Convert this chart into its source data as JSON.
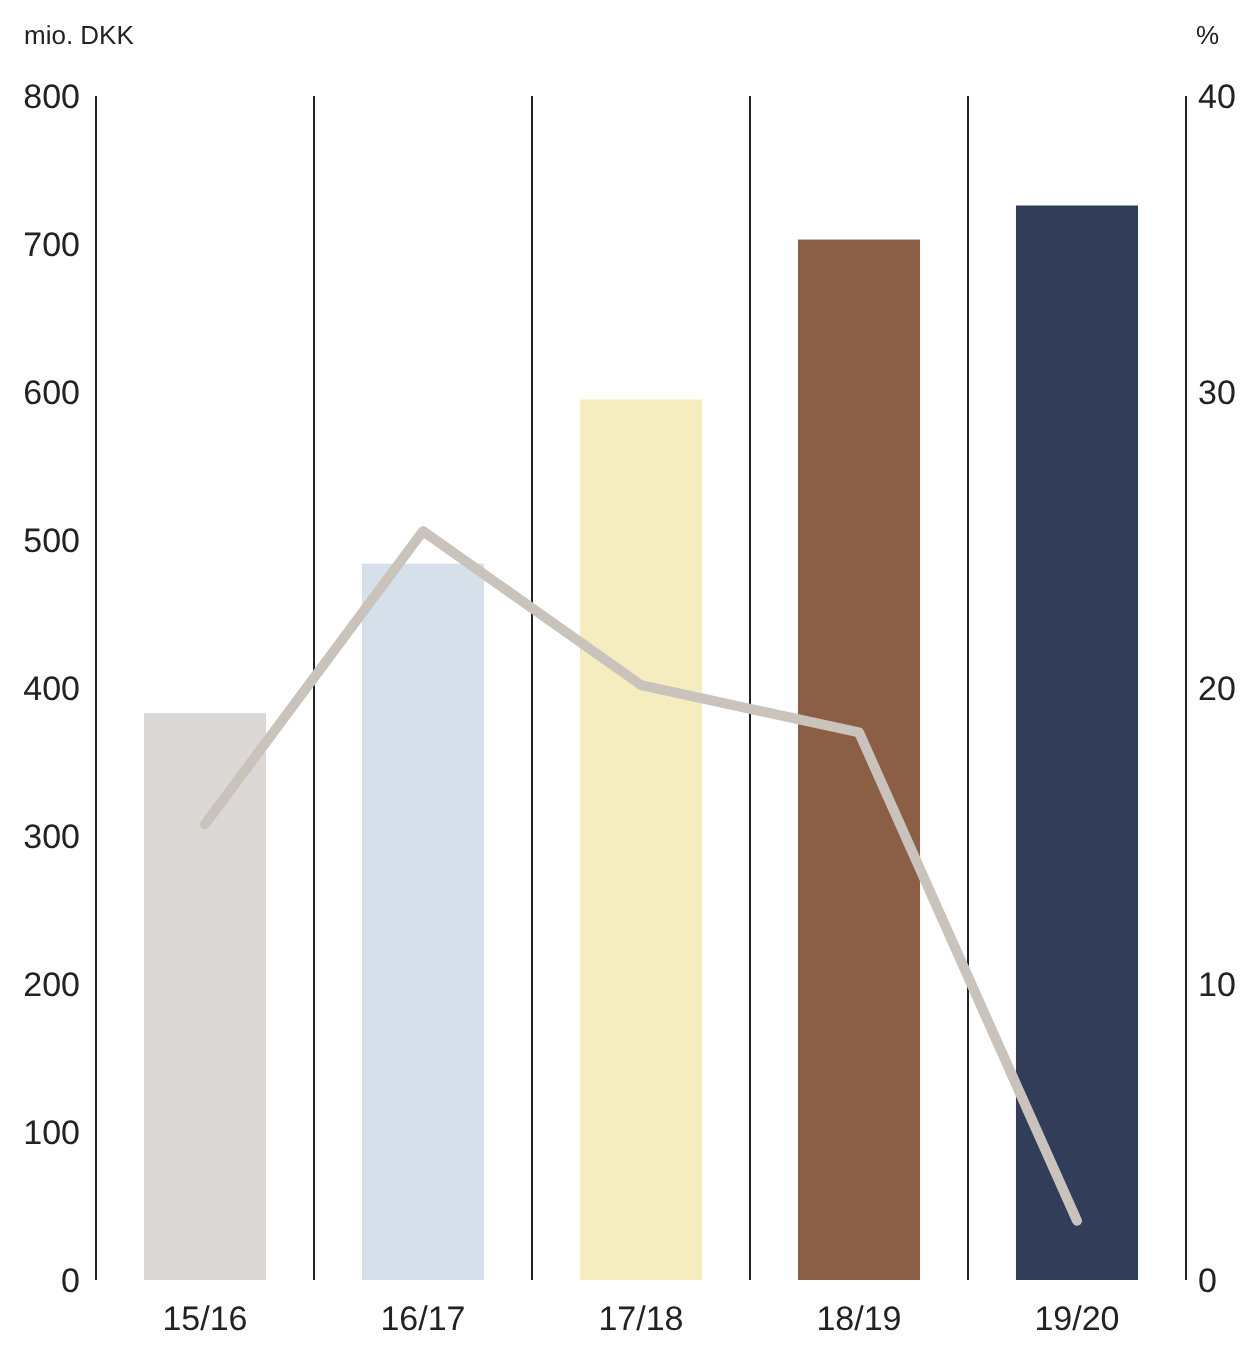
{
  "chart_data": {
    "type": "bar",
    "ylabel": "mio. DKK",
    "y2label": "%",
    "categories": [
      "15/16",
      "16/17",
      "17/18",
      "18/19",
      "19/20"
    ],
    "series": [
      {
        "colors": [
          "#dcd8d5",
          "#d5e0ea",
          "#f5edbf",
          "#8b5f45",
          "#313d59"
        ],
        "values": [
          383,
          484,
          595,
          703,
          726
        ]
      },
      {
        "type": "line",
        "axis": "y2",
        "color": "#c9c3bb",
        "values": [
          15.4,
          25.3,
          20.1,
          18.5,
          2.0
        ]
      }
    ],
    "ylim": [
      0,
      800
    ],
    "yticks": [
      0,
      100,
      200,
      300,
      400,
      500,
      600,
      700,
      800
    ],
    "y2lim": [
      0,
      40
    ],
    "y2ticks": [
      0,
      10,
      20,
      30,
      40
    ],
    "grid": "x",
    "marker": "none",
    "line_style": "solid"
  }
}
